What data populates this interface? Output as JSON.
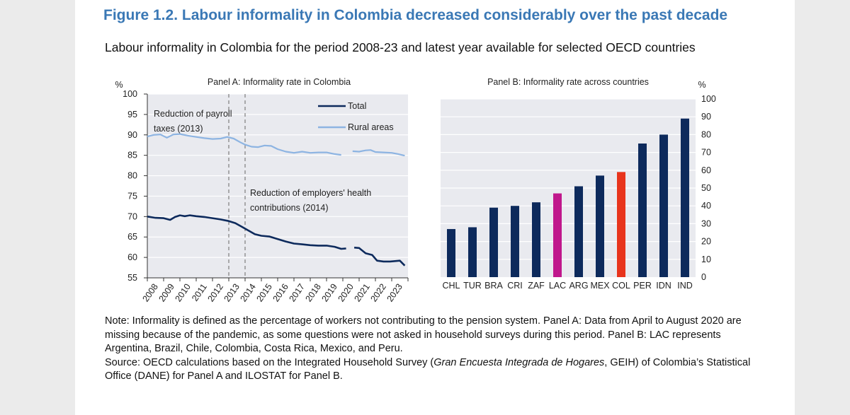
{
  "figure": {
    "title": "Figure 1.2. Labour informality in Colombia decreased considerably over the past decade",
    "subtitle": "Labour informality in Colombia for the period 2008-23 and latest year available for selected OECD countries"
  },
  "colors": {
    "total": "#0d2a5c",
    "rural": "#8db4e2",
    "bar_default": "#0d2a5c",
    "bar_lac": "#c0178c",
    "bar_col": "#e8341c",
    "plot_bg": "#e9eaef",
    "grid": "#ffffff"
  },
  "chart_data": [
    {
      "type": "line",
      "title": "Panel A: Informality rate in Colombia",
      "yunit": "%",
      "ylim": [
        55,
        100
      ],
      "yticks": [
        55,
        60,
        65,
        70,
        75,
        80,
        85,
        90,
        95,
        100
      ],
      "x_tick_labels": [
        "2008",
        "2009",
        "2010",
        "2011",
        "2012",
        "2013",
        "2014",
        "2015",
        "2016",
        "2017",
        "2018",
        "2019",
        "2020",
        "2021",
        "2022",
        "2023"
      ],
      "grid": true,
      "legend_position": "top-right",
      "series": [
        {
          "name": "Total",
          "points": [
            [
              2008.0,
              70.0
            ],
            [
              2008.5,
              69.7
            ],
            [
              2009.0,
              69.6
            ],
            [
              2009.4,
              69.2
            ],
            [
              2009.7,
              69.9
            ],
            [
              2010.0,
              70.3
            ],
            [
              2010.3,
              70.1
            ],
            [
              2010.6,
              70.3
            ],
            [
              2011.0,
              70.1
            ],
            [
              2011.5,
              69.9
            ],
            [
              2012.0,
              69.6
            ],
            [
              2012.5,
              69.3
            ],
            [
              2013.0,
              68.9
            ],
            [
              2013.4,
              68.4
            ],
            [
              2013.8,
              67.5
            ],
            [
              2014.2,
              66.6
            ],
            [
              2014.6,
              65.7
            ],
            [
              2015.0,
              65.3
            ],
            [
              2015.5,
              65.1
            ],
            [
              2016.0,
              64.5
            ],
            [
              2016.5,
              63.9
            ],
            [
              2017.0,
              63.4
            ],
            [
              2017.5,
              63.2
            ],
            [
              2018.0,
              63.0
            ],
            [
              2018.5,
              62.9
            ],
            [
              2019.0,
              62.9
            ],
            [
              2019.5,
              62.6
            ],
            [
              2019.9,
              62.1
            ],
            [
              2020.2,
              62.2
            ],
            null,
            [
              2020.7,
              62.4
            ],
            [
              2021.0,
              62.3
            ],
            [
              2021.4,
              61.0
            ],
            [
              2021.8,
              60.6
            ],
            [
              2022.1,
              59.2
            ],
            [
              2022.5,
              59.0
            ],
            [
              2022.9,
              59.0
            ],
            [
              2023.2,
              59.1
            ],
            [
              2023.5,
              59.2
            ],
            [
              2023.8,
              58.0
            ]
          ]
        },
        {
          "name": "Rural areas",
          "points": [
            [
              2008.0,
              89.6
            ],
            [
              2008.4,
              90.0
            ],
            [
              2008.8,
              90.1
            ],
            [
              2009.2,
              89.3
            ],
            [
              2009.6,
              90.1
            ],
            [
              2010.0,
              90.2
            ],
            [
              2010.5,
              89.8
            ],
            [
              2011.0,
              89.5
            ],
            [
              2011.5,
              89.2
            ],
            [
              2012.0,
              89.0
            ],
            [
              2012.5,
              89.1
            ],
            [
              2012.9,
              89.5
            ],
            [
              2013.3,
              89.1
            ],
            [
              2013.7,
              88.2
            ],
            [
              2014.0,
              87.6
            ],
            [
              2014.4,
              87.1
            ],
            [
              2014.8,
              87.0
            ],
            [
              2015.2,
              87.4
            ],
            [
              2015.6,
              87.3
            ],
            [
              2016.0,
              86.5
            ],
            [
              2016.5,
              85.9
            ],
            [
              2017.0,
              85.6
            ],
            [
              2017.5,
              85.9
            ],
            [
              2018.0,
              85.6
            ],
            [
              2018.5,
              85.7
            ],
            [
              2019.0,
              85.7
            ],
            [
              2019.5,
              85.3
            ],
            [
              2019.9,
              85.1
            ],
            null,
            [
              2020.6,
              86.0
            ],
            [
              2021.0,
              85.9
            ],
            [
              2021.4,
              86.2
            ],
            [
              2021.7,
              86.3
            ],
            [
              2022.0,
              85.8
            ],
            [
              2022.5,
              85.7
            ],
            [
              2023.0,
              85.6
            ],
            [
              2023.4,
              85.3
            ],
            [
              2023.8,
              84.9
            ]
          ]
        }
      ],
      "annotations": [
        {
          "year": 2013,
          "lines": [
            "Reduction of payroll",
            "taxes (2013)"
          ]
        },
        {
          "year": 2014,
          "lines": [
            "Reduction of employers' health",
            "contributions (2014)"
          ]
        }
      ]
    },
    {
      "type": "bar",
      "title": "Panel B: Informality rate across countries",
      "yunit": "%",
      "ylim": [
        0,
        100
      ],
      "yticks": [
        0,
        10,
        20,
        30,
        40,
        50,
        60,
        70,
        80,
        90,
        100
      ],
      "y_axis_side": "right",
      "grid": true,
      "categories": [
        "CHL",
        "TUR",
        "BRA",
        "CRI",
        "ZAF",
        "LAC",
        "ARG",
        "MEX",
        "COL",
        "PER",
        "IDN",
        "IND"
      ],
      "values": [
        27,
        28,
        39,
        40,
        42,
        47,
        51,
        57,
        59,
        75,
        80,
        89
      ]
    }
  ],
  "notes": {
    "note": "Note: Informality is defined as the percentage of workers not contributing to the pension system. Panel A: Data from April to August 2020 are missing because of the pandemic, as some questions were not asked in household surveys during this period. Panel B: LAC represents Argentina, Brazil, Chile, Colombia, Costa Rica, Mexico, and Peru.",
    "source_prefix": "Source: OECD calculations based on the Integrated Household Survey (",
    "source_italic": "Gran Encuesta Integrada de Hogares",
    "source_suffix": ", GEIH) of Colombia’s Statistical Office (DANE) for Panel A and ILOSTAT for Panel B."
  }
}
